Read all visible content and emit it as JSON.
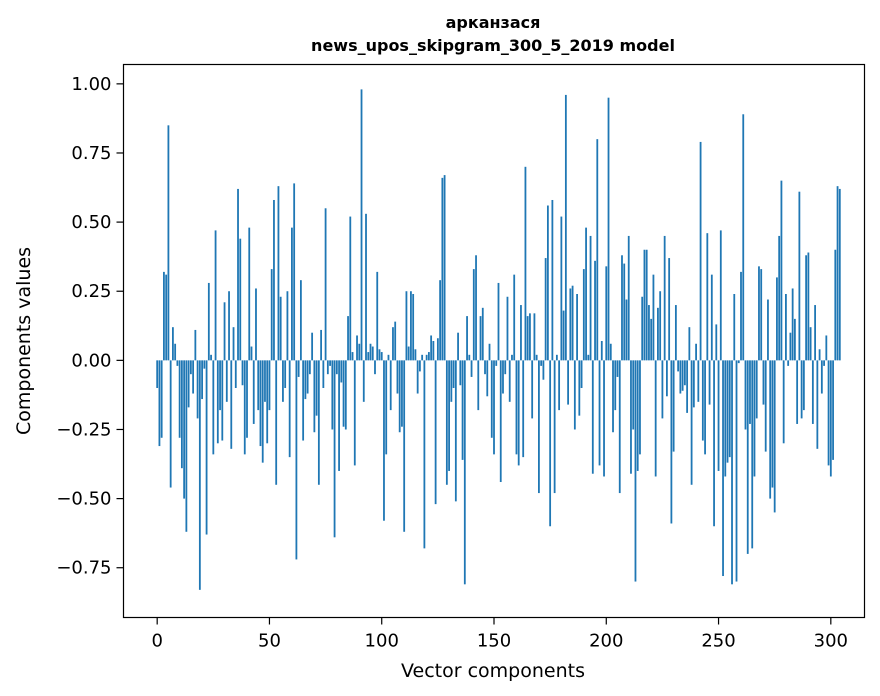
{
  "chart_data": {
    "type": "bar",
    "title": "арканзася",
    "subtitle": "news_upos_skipgram_300_5_2019 model",
    "xlabel": "Vector components",
    "ylabel": "Components values",
    "xlim": [
      -15,
      315
    ],
    "ylim": [
      -0.93,
      1.07
    ],
    "xticks": [
      0,
      50,
      100,
      150,
      200,
      250,
      300
    ],
    "xtick_labels": [
      "0",
      "50",
      "100",
      "150",
      "200",
      "250",
      "300"
    ],
    "yticks": [
      -0.75,
      -0.5,
      -0.25,
      0.0,
      0.25,
      0.5,
      0.75,
      1.0
    ],
    "ytick_labels": [
      "−0.75",
      "−0.50",
      "−0.25",
      "0.00",
      "0.25",
      "0.50",
      "0.75",
      "1.00"
    ],
    "bar_color": "#1f77b4",
    "values": [
      -0.1,
      -0.31,
      -0.28,
      0.32,
      0.31,
      0.85,
      -0.46,
      0.12,
      0.06,
      -0.02,
      -0.28,
      -0.39,
      -0.5,
      -0.62,
      -0.17,
      -0.05,
      -0.12,
      0.11,
      -0.21,
      -0.83,
      -0.14,
      -0.03,
      -0.63,
      0.28,
      0.02,
      -0.34,
      0.47,
      -0.3,
      -0.18,
      -0.29,
      0.21,
      -0.15,
      0.25,
      -0.32,
      0.12,
      -0.1,
      0.62,
      0.44,
      -0.09,
      -0.34,
      -0.28,
      0.48,
      0.05,
      -0.23,
      0.26,
      -0.18,
      -0.31,
      -0.37,
      -0.15,
      -0.3,
      -0.18,
      0.33,
      0.58,
      -0.45,
      0.63,
      0.23,
      -0.15,
      -0.1,
      0.25,
      -0.35,
      0.48,
      0.64,
      -0.72,
      -0.06,
      0.29,
      -0.29,
      -0.14,
      -0.12,
      -0.05,
      0.1,
      -0.26,
      -0.2,
      -0.45,
      0.11,
      -0.1,
      0.55,
      -0.05,
      -0.02,
      -0.25,
      -0.64,
      -0.05,
      -0.4,
      -0.08,
      -0.24,
      -0.25,
      0.16,
      0.52,
      0.03,
      -0.38,
      0.09,
      0.06,
      0.98,
      -0.15,
      0.53,
      0.03,
      0.06,
      0.05,
      -0.05,
      0.32,
      0.04,
      0.03,
      -0.58,
      -0.34,
      0.02,
      -0.18,
      0.12,
      0.14,
      -0.12,
      -0.26,
      -0.24,
      -0.62,
      0.25,
      0.05,
      0.25,
      0.24,
      0.04,
      -0.12,
      -0.04,
      0.02,
      -0.68,
      0.02,
      0.03,
      0.09,
      0.07,
      -0.52,
      0.08,
      0.29,
      0.66,
      0.67,
      -0.45,
      -0.4,
      -0.15,
      -0.1,
      -0.51,
      0.1,
      -0.09,
      -0.36,
      -0.81,
      0.16,
      0.02,
      -0.06,
      0.33,
      0.38,
      -0.18,
      0.16,
      0.19,
      -0.05,
      -0.13,
      0.06,
      -0.28,
      -0.34,
      -0.02,
      0.28,
      -0.44,
      -0.12,
      -0.05,
      0.23,
      -0.15,
      0.02,
      0.31,
      -0.34,
      -0.38,
      0.2,
      -0.35,
      0.7,
      0.16,
      0.17,
      -0.21,
      0.17,
      0.02,
      -0.48,
      -0.02,
      -0.07,
      0.37,
      0.56,
      -0.6,
      0.58,
      -0.48,
      0.02,
      -0.18,
      0.52,
      0.18,
      0.96,
      -0.16,
      0.26,
      0.27,
      -0.25,
      0.24,
      -0.2,
      -0.1,
      0.33,
      0.48,
      0.02,
      0.45,
      -0.41,
      0.36,
      0.8,
      -0.38,
      0.07,
      -0.42,
      0.34,
      0.95,
      0.06,
      -0.26,
      -0.18,
      -0.06,
      -0.48,
      0.38,
      0.35,
      0.22,
      0.45,
      -0.41,
      -0.25,
      -0.8,
      -0.4,
      -0.34,
      0.23,
      0.4,
      0.4,
      0.2,
      0.15,
      0.31,
      -0.42,
      0.19,
      0.25,
      -0.21,
      0.45,
      -0.13,
      0.37,
      -0.59,
      -0.33,
      0.2,
      -0.04,
      -0.12,
      -0.11,
      -0.09,
      -0.19,
      0.12,
      -0.45,
      -0.17,
      0.06,
      -0.15,
      0.79,
      -0.29,
      -0.34,
      0.46,
      -0.16,
      0.31,
      -0.6,
      0.13,
      -0.4,
      0.47,
      -0.78,
      -0.42,
      -0.37,
      -0.35,
      -0.81,
      0.24,
      -0.8,
      -0.01,
      0.32,
      0.89,
      -0.25,
      -0.7,
      -0.23,
      -0.68,
      -0.42,
      -0.21,
      0.34,
      0.33,
      -0.16,
      -0.33,
      0.22,
      -0.5,
      -0.46,
      -0.55,
      0.3,
      0.45,
      0.65,
      -0.3,
      0.24,
      -0.02,
      0.1,
      0.26,
      0.15,
      -0.23,
      0.61,
      -0.21,
      -0.18,
      0.38,
      0.39,
      0.12,
      -0.23,
      0.2,
      -0.32,
      0.04,
      -0.12,
      -0.02,
      0.09,
      -0.38,
      -0.42,
      -0.36,
      0.4,
      0.63,
      0.62
    ]
  }
}
